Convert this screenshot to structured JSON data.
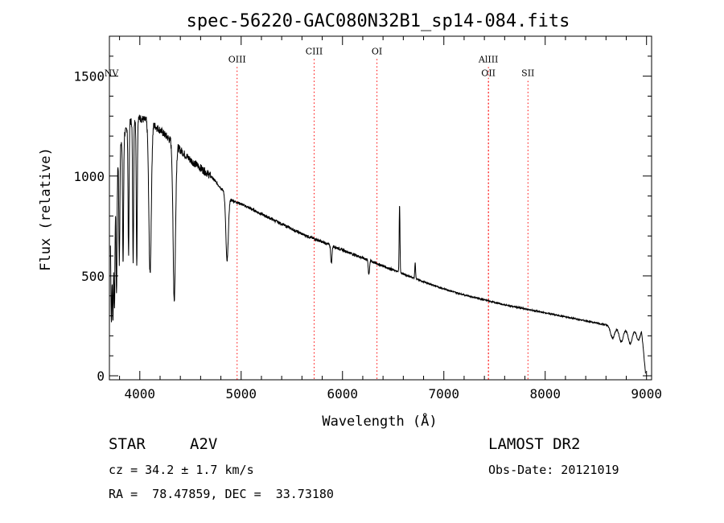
{
  "chart_data": {
    "type": "line",
    "title": "spec-56220-GAC080N32B1_sp14-084.fits",
    "xlabel": "Wavelength (Å)",
    "ylabel": "Flux (relative)",
    "xlim": [
      3700,
      9050
    ],
    "ylim": [
      -20,
      1700
    ],
    "xticks": [
      4000,
      5000,
      6000,
      7000,
      8000,
      9000
    ],
    "yticks": [
      0,
      500,
      1000,
      1500
    ],
    "x_minor_step": 200,
    "y_minor_step": 100,
    "grid": false,
    "line_color": "#000000",
    "marker_color": "#ff0000",
    "continuum": [
      {
        "x": 3710,
        "y": 720
      },
      {
        "x": 3800,
        "y": 1150
      },
      {
        "x": 3900,
        "y": 1270
      },
      {
        "x": 4000,
        "y": 1290
      },
      {
        "x": 4100,
        "y": 1270
      },
      {
        "x": 4200,
        "y": 1230
      },
      {
        "x": 4300,
        "y": 1180
      },
      {
        "x": 4400,
        "y": 1130
      },
      {
        "x": 4500,
        "y": 1080
      },
      {
        "x": 4600,
        "y": 1040
      },
      {
        "x": 4700,
        "y": 1000
      },
      {
        "x": 4800,
        "y": 940
      },
      {
        "x": 4900,
        "y": 880
      },
      {
        "x": 5000,
        "y": 860
      },
      {
        "x": 5200,
        "y": 810
      },
      {
        "x": 5400,
        "y": 760
      },
      {
        "x": 5600,
        "y": 710
      },
      {
        "x": 5800,
        "y": 670
      },
      {
        "x": 6000,
        "y": 630
      },
      {
        "x": 6200,
        "y": 590
      },
      {
        "x": 6400,
        "y": 550
      },
      {
        "x": 6600,
        "y": 510
      },
      {
        "x": 6800,
        "y": 470
      },
      {
        "x": 7000,
        "y": 435
      },
      {
        "x": 7200,
        "y": 405
      },
      {
        "x": 7400,
        "y": 380
      },
      {
        "x": 7600,
        "y": 355
      },
      {
        "x": 7800,
        "y": 335
      },
      {
        "x": 8000,
        "y": 315
      },
      {
        "x": 8200,
        "y": 295
      },
      {
        "x": 8400,
        "y": 275
      },
      {
        "x": 8600,
        "y": 255
      },
      {
        "x": 8800,
        "y": 235
      },
      {
        "x": 8950,
        "y": 240
      },
      {
        "x": 8990,
        "y": 10
      }
    ],
    "absorption_lines": [
      {
        "x": 3720,
        "depth": 500
      },
      {
        "x": 3735,
        "depth": 550
      },
      {
        "x": 3750,
        "depth": 560
      },
      {
        "x": 3770,
        "depth": 600
      },
      {
        "x": 3798,
        "depth": 580
      },
      {
        "x": 3835,
        "depth": 630
      },
      {
        "x": 3889,
        "depth": 650
      },
      {
        "x": 3934,
        "depth": 700
      },
      {
        "x": 3970,
        "depth": 720
      },
      {
        "x": 4101,
        "depth": 760
      },
      {
        "x": 4340,
        "depth": 780
      },
      {
        "x": 4861,
        "depth": 330
      },
      {
        "x": 5890,
        "depth": 90
      },
      {
        "x": 6260,
        "depth": 70
      }
    ],
    "emission_lines": [
      {
        "x": 6563,
        "height": 340
      },
      {
        "x": 6717,
        "height": 80
      }
    ],
    "tail_bands": [
      {
        "x": 8665,
        "depth": 60
      },
      {
        "x": 8750,
        "depth": 70
      },
      {
        "x": 8840,
        "depth": 75
      },
      {
        "x": 8920,
        "depth": 60
      }
    ],
    "line_markers": [
      {
        "label": "NV",
        "x": 3720,
        "label_y": 1500
      },
      {
        "label": "OIII",
        "x": 4960,
        "label_y": 1570
      },
      {
        "label": "CIII",
        "x": 5720,
        "label_y": 1610
      },
      {
        "label": "OI",
        "x": 6340,
        "label_y": 1610
      },
      {
        "label": "AlIII",
        "x": 7440,
        "label_y": 1570
      },
      {
        "label": "OII",
        "x": 7440,
        "label_y": 1500
      },
      {
        "label": "SII",
        "x": 7830,
        "label_y": 1500
      }
    ]
  },
  "info": {
    "object_type": "STAR",
    "spectral_class": "A2V",
    "survey": "LAMOST DR2",
    "cz": "cz = 34.2 ± 1.7 km/s",
    "obs_date": "Obs-Date: 20121019",
    "coords": "RA =  78.47859, DEC =  33.73180"
  }
}
